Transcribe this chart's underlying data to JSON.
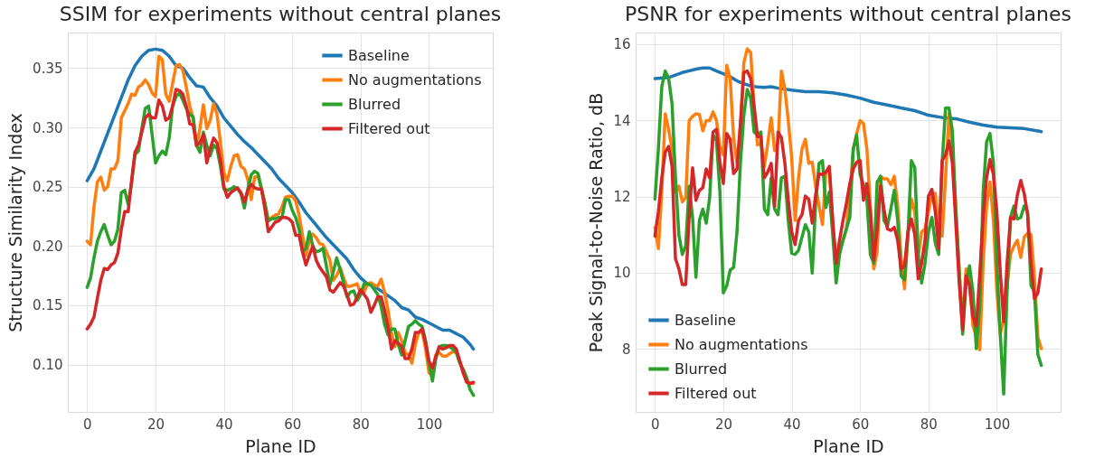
{
  "chart_data": [
    {
      "type": "line",
      "title": "SSIM for experiments without central planes",
      "xlabel": "Plane ID",
      "ylabel": "Structure Similarity Index",
      "grid": true,
      "legend": "top right",
      "line_style": "solid",
      "xlim": [
        -5.65,
        118.65
      ],
      "xticks": [
        0,
        20,
        40,
        60,
        80,
        100
      ],
      "ylim": [
        0.06,
        0.38
      ],
      "yticks": [
        {
          "value": 0.1,
          "label": "0.10"
        },
        0.15,
        {
          "value": 0.2,
          "label": "0.20"
        },
        0.25,
        {
          "value": 0.3,
          "label": "0.30"
        },
        0.35
      ],
      "x": [
        0,
        1,
        2,
        3,
        4,
        5,
        6,
        7,
        8,
        9,
        10,
        11,
        12,
        13,
        14,
        15,
        16,
        17,
        18,
        19,
        20,
        21,
        22,
        23,
        24,
        25,
        26,
        27,
        28,
        29,
        30,
        31,
        32,
        33,
        34,
        35,
        36,
        37,
        38,
        39,
        40,
        41,
        42,
        43,
        44,
        45,
        46,
        47,
        48,
        49,
        50,
        51,
        52,
        53,
        54,
        55,
        56,
        57,
        58,
        59,
        60,
        61,
        62,
        63,
        64,
        65,
        66,
        67,
        68,
        69,
        70,
        71,
        72,
        73,
        74,
        75,
        76,
        77,
        78,
        79,
        80,
        81,
        82,
        83,
        84,
        85,
        86,
        87,
        88,
        89,
        90,
        91,
        92,
        93,
        94,
        95,
        96,
        97,
        98,
        99,
        100,
        101,
        102,
        103,
        104,
        105,
        106,
        107,
        108,
        109,
        110,
        111,
        112,
        113
      ],
      "series": [
        {
          "name": "Baseline",
          "color": "#1f77b4",
          "x": [
            0,
            2,
            4,
            6,
            8,
            10,
            12,
            14,
            16,
            18,
            20,
            22,
            24,
            26,
            28,
            30,
            32,
            34,
            36,
            38,
            40,
            42,
            44,
            46,
            48,
            50,
            52,
            54,
            56,
            58,
            60,
            62,
            64,
            66,
            68,
            70,
            72,
            74,
            76,
            78,
            80,
            82,
            84,
            86,
            88,
            90,
            92,
            94,
            96,
            98,
            100,
            102,
            104,
            106,
            108,
            110,
            112,
            113
          ],
          "values": [
            0.255,
            0.265,
            0.28,
            0.295,
            0.31,
            0.325,
            0.34,
            0.352,
            0.36,
            0.365,
            0.366,
            0.365,
            0.36,
            0.352,
            0.35,
            0.342,
            0.335,
            0.334,
            0.325,
            0.318,
            0.308,
            0.301,
            0.294,
            0.288,
            0.283,
            0.277,
            0.271,
            0.265,
            0.257,
            0.251,
            0.245,
            0.237,
            0.228,
            0.221,
            0.214,
            0.207,
            0.201,
            0.195,
            0.189,
            0.18,
            0.173,
            0.168,
            0.166,
            0.162,
            0.158,
            0.154,
            0.148,
            0.146,
            0.14,
            0.138,
            0.135,
            0.132,
            0.129,
            0.129,
            0.126,
            0.123,
            0.117,
            0.113
          ]
        },
        {
          "name": "No augmentations",
          "color": "#ff7f0e",
          "values": [
            0.204,
            0.201,
            0.233,
            0.254,
            0.258,
            0.247,
            0.25,
            0.265,
            0.265,
            0.272,
            0.308,
            0.314,
            0.32,
            0.328,
            0.327,
            0.334,
            0.336,
            0.34,
            0.336,
            0.329,
            0.326,
            0.36,
            0.357,
            0.328,
            0.322,
            0.337,
            0.352,
            0.353,
            0.348,
            0.334,
            0.318,
            0.308,
            0.284,
            0.299,
            0.319,
            0.299,
            0.306,
            0.32,
            0.311,
            0.287,
            0.262,
            0.255,
            0.267,
            0.276,
            0.277,
            0.267,
            0.265,
            0.256,
            0.239,
            0.258,
            0.259,
            0.248,
            0.236,
            0.221,
            0.224,
            0.226,
            0.227,
            0.233,
            0.241,
            0.242,
            0.242,
            0.238,
            0.226,
            0.209,
            0.192,
            0.204,
            0.21,
            0.207,
            0.202,
            0.201,
            0.195,
            0.188,
            0.171,
            0.175,
            0.182,
            0.173,
            0.166,
            0.166,
            0.167,
            0.168,
            0.16,
            0.161,
            0.168,
            0.169,
            0.167,
            0.166,
            0.172,
            0.161,
            0.146,
            0.127,
            0.115,
            0.127,
            0.12,
            0.11,
            0.108,
            0.101,
            0.117,
            0.127,
            0.128,
            0.113,
            0.093,
            0.091,
            0.108,
            0.11,
            0.107,
            0.107,
            0.109,
            0.111,
            0.11,
            0.103,
            0.093,
            0.086,
            0.084,
            0.084
          ]
        },
        {
          "name": "Blurred",
          "color": "#2ca02c",
          "values": [
            0.165,
            0.173,
            0.19,
            0.204,
            0.212,
            0.218,
            0.209,
            0.201,
            0.204,
            0.214,
            0.245,
            0.247,
            0.235,
            0.253,
            0.277,
            0.28,
            0.299,
            0.316,
            0.318,
            0.294,
            0.27,
            0.276,
            0.28,
            0.277,
            0.291,
            0.318,
            0.326,
            0.329,
            0.323,
            0.316,
            0.311,
            0.309,
            0.285,
            0.279,
            0.296,
            0.285,
            0.276,
            0.285,
            0.282,
            0.267,
            0.248,
            0.247,
            0.248,
            0.25,
            0.248,
            0.244,
            0.232,
            0.248,
            0.26,
            0.263,
            0.261,
            0.248,
            0.236,
            0.221,
            0.223,
            0.223,
            0.224,
            0.224,
            0.239,
            0.239,
            0.23,
            0.224,
            0.214,
            0.195,
            0.198,
            0.212,
            0.2,
            0.195,
            0.196,
            0.198,
            0.183,
            0.167,
            0.178,
            0.19,
            0.18,
            0.169,
            0.157,
            0.161,
            0.162,
            0.154,
            0.159,
            0.168,
            0.168,
            0.167,
            0.163,
            0.159,
            0.149,
            0.134,
            0.125,
            0.13,
            0.13,
            0.117,
            0.108,
            0.12,
            0.132,
            0.134,
            0.137,
            0.134,
            0.132,
            0.12,
            0.101,
            0.086,
            0.105,
            0.115,
            0.116,
            0.116,
            0.115,
            0.113,
            0.11,
            0.101,
            0.096,
            0.089,
            0.079,
            0.074
          ]
        },
        {
          "name": "Filtered out",
          "color": "#d62728",
          "values": [
            0.13,
            0.134,
            0.14,
            0.156,
            0.171,
            0.181,
            0.18,
            0.184,
            0.186,
            0.194,
            0.214,
            0.229,
            0.229,
            0.255,
            0.279,
            0.285,
            0.296,
            0.308,
            0.311,
            0.308,
            0.308,
            0.323,
            0.318,
            0.306,
            0.308,
            0.318,
            0.332,
            0.331,
            0.328,
            0.318,
            0.303,
            0.302,
            0.285,
            0.287,
            0.294,
            0.27,
            0.282,
            0.291,
            0.287,
            0.272,
            0.25,
            0.241,
            0.245,
            0.247,
            0.249,
            0.245,
            0.237,
            0.247,
            0.252,
            0.249,
            0.248,
            0.248,
            0.231,
            0.212,
            0.216,
            0.22,
            0.221,
            0.224,
            0.224,
            0.223,
            0.22,
            0.209,
            0.209,
            0.195,
            0.184,
            0.192,
            0.2,
            0.188,
            0.182,
            0.178,
            0.174,
            0.163,
            0.161,
            0.165,
            0.169,
            0.166,
            0.159,
            0.15,
            0.151,
            0.157,
            0.163,
            0.159,
            0.155,
            0.144,
            0.15,
            0.157,
            0.157,
            0.146,
            0.132,
            0.113,
            0.12,
            0.118,
            0.115,
            0.105,
            0.105,
            0.113,
            0.127,
            0.127,
            0.13,
            0.118,
            0.103,
            0.097,
            0.107,
            0.115,
            0.113,
            0.114,
            0.116,
            0.116,
            0.113,
            0.103,
            0.093,
            0.085,
            0.084,
            0.085
          ]
        }
      ]
    },
    {
      "type": "line",
      "title": "PSNR for experiments without central planes",
      "xlabel": "Plane ID",
      "ylabel": "Peak Signal-to-Noise Ratio, dB",
      "grid": true,
      "legend": "bottom left",
      "line_style": "solid",
      "xlim": [
        -5.65,
        118.65
      ],
      "xticks": [
        0,
        20,
        40,
        60,
        80,
        100
      ],
      "ylim": [
        6.35,
        16.3
      ],
      "yticks": [
        8,
        10,
        12,
        14,
        16
      ],
      "x": [
        0,
        1,
        2,
        3,
        4,
        5,
        6,
        7,
        8,
        9,
        10,
        11,
        12,
        13,
        14,
        15,
        16,
        17,
        18,
        19,
        20,
        21,
        22,
        23,
        24,
        25,
        26,
        27,
        28,
        29,
        30,
        31,
        32,
        33,
        34,
        35,
        36,
        37,
        38,
        39,
        40,
        41,
        42,
        43,
        44,
        45,
        46,
        47,
        48,
        49,
        50,
        51,
        52,
        53,
        54,
        55,
        56,
        57,
        58,
        59,
        60,
        61,
        62,
        63,
        64,
        65,
        66,
        67,
        68,
        69,
        70,
        71,
        72,
        73,
        74,
        75,
        76,
        77,
        78,
        79,
        80,
        81,
        82,
        83,
        84,
        85,
        86,
        87,
        88,
        89,
        90,
        91,
        92,
        93,
        94,
        95,
        96,
        97,
        98,
        99,
        100,
        101,
        102,
        103,
        104,
        105,
        106,
        107,
        108,
        109,
        110,
        111,
        112,
        113
      ],
      "series": [
        {
          "name": "Baseline",
          "color": "#1f77b4",
          "x": [
            0,
            4,
            8,
            12,
            14,
            16,
            18,
            20,
            22,
            24,
            26,
            28,
            30,
            32,
            34,
            36,
            40,
            44,
            48,
            52,
            56,
            60,
            64,
            68,
            72,
            76,
            80,
            84,
            88,
            92,
            96,
            100,
            104,
            108,
            112,
            113
          ],
          "values": [
            15.09,
            15.12,
            15.25,
            15.34,
            15.37,
            15.37,
            15.29,
            15.22,
            15.14,
            15.03,
            14.96,
            14.9,
            14.87,
            14.86,
            14.88,
            14.84,
            14.79,
            14.75,
            14.75,
            14.72,
            14.66,
            14.58,
            14.47,
            14.4,
            14.32,
            14.25,
            14.13,
            14.07,
            14.04,
            13.95,
            13.87,
            13.82,
            13.8,
            13.78,
            13.72,
            13.7
          ]
        },
        {
          "name": "No augmentations",
          "color": "#ff7f0e",
          "values": [
            11.19,
            10.63,
            12.12,
            14.17,
            13.76,
            13.24,
            12.12,
            12.27,
            11.86,
            11.97,
            13.99,
            14.1,
            14.17,
            14.15,
            13.72,
            13.99,
            13.99,
            14.22,
            13.99,
            13.31,
            13.09,
            15.44,
            15.1,
            13.54,
            12.87,
            13.84,
            15.51,
            15.87,
            15.78,
            14.36,
            13.35,
            13.39,
            12.79,
            13.39,
            14.06,
            13.2,
            13.39,
            15.29,
            14.81,
            13.99,
            13.01,
            11.37,
            12.49,
            13.24,
            13.5,
            12.87,
            12.9,
            12.27,
            11.75,
            11.26,
            12.64,
            12.72,
            11.3,
            10.2,
            10.6,
            10.85,
            11.15,
            12.04,
            13.24,
            13.65,
            13.99,
            13.91,
            13.24,
            11.75,
            10.1,
            10.55,
            12.53,
            12.46,
            12.46,
            12.31,
            12.53,
            11.75,
            10.4,
            9.58,
            11.0,
            11.93,
            11.6,
            10.4,
            11.07,
            11.15,
            11.6,
            12.04,
            12.08,
            11.0,
            10.96,
            12.49,
            14.17,
            13.24,
            11.75,
            10.03,
            8.69,
            10.1,
            9.81,
            8.61,
            8.31,
            7.98,
            10.25,
            11.75,
            12.38,
            11.37,
            9.51,
            8.39,
            8.76,
            9.66,
            10.48,
            10.7,
            10.85,
            10.4,
            10.93,
            11.04,
            11.0,
            9.88,
            8.31,
            8.01
          ]
        },
        {
          "name": "Blurred",
          "color": "#2ca02c",
          "values": [
            11.93,
            13.24,
            14.88,
            15.29,
            15.1,
            14.43,
            12.49,
            11.0,
            10.48,
            10.7,
            12.27,
            11.45,
            9.88,
            11.37,
            11.67,
            11.3,
            11.97,
            13.61,
            13.46,
            12.12,
            9.47,
            9.66,
            10.07,
            10.14,
            11.07,
            12.87,
            14.13,
            14.81,
            14.58,
            13.69,
            13.61,
            13.69,
            11.67,
            11.52,
            12.49,
            11.67,
            11.52,
            12.49,
            12.53,
            11.37,
            10.51,
            10.48,
            10.59,
            10.93,
            11.26,
            11.07,
            9.99,
            11.82,
            12.87,
            12.94,
            11.71,
            12.12,
            11.0,
            9.73,
            10.48,
            10.85,
            11.15,
            11.45,
            13.24,
            13.61,
            12.57,
            12.31,
            11.9,
            10.48,
            10.25,
            12.38,
            12.53,
            11.37,
            11.22,
            11.67,
            12.16,
            11.37,
            9.92,
            9.81,
            11.0,
            12.94,
            12.75,
            10.48,
            9.73,
            10.25,
            11.07,
            11.45,
            10.78,
            10.48,
            12.87,
            14.32,
            14.32,
            13.72,
            11.6,
            10.03,
            8.39,
            9.73,
            10.18,
            9.51,
            8.01,
            9.13,
            12.12,
            13.43,
            13.65,
            12.87,
            10.25,
            8.39,
            6.82,
            9.51,
            11.45,
            11.75,
            11.41,
            11.45,
            11.75,
            11.6,
            9.66,
            9.51,
            7.86,
            7.57
          ]
        },
        {
          "name": "Filtered out",
          "color": "#d62728",
          "values": [
            10.96,
            11.6,
            12.49,
            13.16,
            13.31,
            12.79,
            10.37,
            10.1,
            9.69,
            9.69,
            11.45,
            12.75,
            11.9,
            12.16,
            12.23,
            12.72,
            12.49,
            13.69,
            13.76,
            12.9,
            12.34,
            13.65,
            13.5,
            12.6,
            12.72,
            13.91,
            15.25,
            15.29,
            15.1,
            14.36,
            13.57,
            13.57,
            12.49,
            12.64,
            12.87,
            11.75,
            13.69,
            13.54,
            12.87,
            11.9,
            11.07,
            10.74,
            11.37,
            11.52,
            12.01,
            11.93,
            11.3,
            12.04,
            12.6,
            12.57,
            12.64,
            12.79,
            11.37,
            10.25,
            10.85,
            11.37,
            11.82,
            12.34,
            12.72,
            12.9,
            12.94,
            11.9,
            12.34,
            11.6,
            10.33,
            11.15,
            12.27,
            11.67,
            11.15,
            11.11,
            11.19,
            10.85,
            10.1,
            10.18,
            11.07,
            11.41,
            11.0,
            9.84,
            10.25,
            10.85,
            12.01,
            12.19,
            11.6,
            10.63,
            12.94,
            13.09,
            13.46,
            12.87,
            11.3,
            9.73,
            8.5,
            9.92,
            9.66,
            8.84,
            8.61,
            9.96,
            11.45,
            12.49,
            12.97,
            12.57,
            11.6,
            10.03,
            8.72,
            10.25,
            11.45,
            11.41,
            12.04,
            12.42,
            12.08,
            11.52,
            10.25,
            9.32,
            9.47,
            10.1
          ]
        }
      ]
    }
  ]
}
